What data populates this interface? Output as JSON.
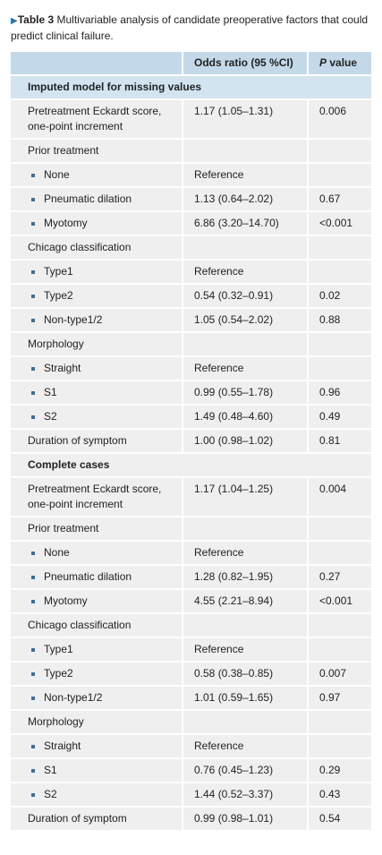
{
  "caption": {
    "label": "Table 3",
    "text": "Multivariable analysis of candidate preoperative factors that could predict clinical failure."
  },
  "table": {
    "header": {
      "odds_ratio": "Odds ratio (95 %CI)",
      "p": "P",
      "value": "value"
    },
    "sections": [
      {
        "title": "Imputed model for missing values",
        "rows": [
          {
            "label": [
              "Pretreatment Eckardt score,",
              "one-point increment"
            ],
            "odds": "1.17 (1.05–1.31)",
            "p": "0.006"
          },
          {
            "label": [
              "Prior treatment"
            ]
          },
          {
            "label": [
              "None"
            ],
            "bullet": true,
            "odds": "Reference"
          },
          {
            "label": [
              "Pneumatic dilation"
            ],
            "bullet": true,
            "odds": "1.13 (0.64–2.02)",
            "p": "0.67"
          },
          {
            "label": [
              "Myotomy"
            ],
            "bullet": true,
            "odds": "6.86 (3.20–14.70)",
            "p": "<0.001"
          },
          {
            "label": [
              "Chicago classification"
            ]
          },
          {
            "label": [
              "Type1"
            ],
            "bullet": true,
            "odds": "Reference"
          },
          {
            "label": [
              "Type2"
            ],
            "bullet": true,
            "odds": "0.54 (0.32–0.91)",
            "p": "0.02"
          },
          {
            "label": [
              "Non-type1/2"
            ],
            "bullet": true,
            "odds": "1.05 (0.54–2.02)",
            "p": "0.88"
          },
          {
            "label": [
              "Morphology"
            ]
          },
          {
            "label": [
              "Straight"
            ],
            "bullet": true,
            "odds": "Reference"
          },
          {
            "label": [
              "S1"
            ],
            "bullet": true,
            "odds": "0.99 (0.55–1.78)",
            "p": "0.96"
          },
          {
            "label": [
              "S2"
            ],
            "bullet": true,
            "odds": "1.49 (0.48–4.60)",
            "p": "0.49"
          },
          {
            "label": [
              "Duration of symptom"
            ],
            "odds": "1.00 (0.98–1.02)",
            "p": "0.81"
          }
        ]
      },
      {
        "title": "Complete cases",
        "rows": [
          {
            "label": [
              "Pretreatment Eckardt score,",
              "one-point increment"
            ],
            "odds": "1.17 (1.04–1.25)",
            "p": "0.004"
          },
          {
            "label": [
              "Prior treatment"
            ]
          },
          {
            "label": [
              "None"
            ],
            "bullet": true,
            "odds": "Reference"
          },
          {
            "label": [
              "Pneumatic dilation"
            ],
            "bullet": true,
            "odds": "1.28 (0.82–1.95)",
            "p": "0.27"
          },
          {
            "label": [
              "Myotomy"
            ],
            "bullet": true,
            "odds": "4.55 (2.21–8.94)",
            "p": "<0.001"
          },
          {
            "label": [
              "Chicago classification"
            ]
          },
          {
            "label": [
              "Type1"
            ],
            "bullet": true,
            "odds": "Reference"
          },
          {
            "label": [
              "Type2"
            ],
            "bullet": true,
            "odds": "0.58 (0.38–0.85)",
            "p": "0.007"
          },
          {
            "label": [
              "Non-type1/2"
            ],
            "bullet": true,
            "odds": "1.01 (0.59–1.65)",
            "p": "0.97"
          },
          {
            "label": [
              "Morphology"
            ]
          },
          {
            "label": [
              "Straight"
            ],
            "bullet": true,
            "odds": "Reference"
          },
          {
            "label": [
              "S1"
            ],
            "bullet": true,
            "odds": "0.76 (0.45–1.23)",
            "p": "0.29"
          },
          {
            "label": [
              "S2"
            ],
            "bullet": true,
            "odds": "1.44 (0.52–3.37)",
            "p": "0.43"
          },
          {
            "label": [
              "Duration of symptom"
            ],
            "odds": "0.99 (0.98–1.01)",
            "p": "0.54"
          }
        ]
      }
    ]
  }
}
